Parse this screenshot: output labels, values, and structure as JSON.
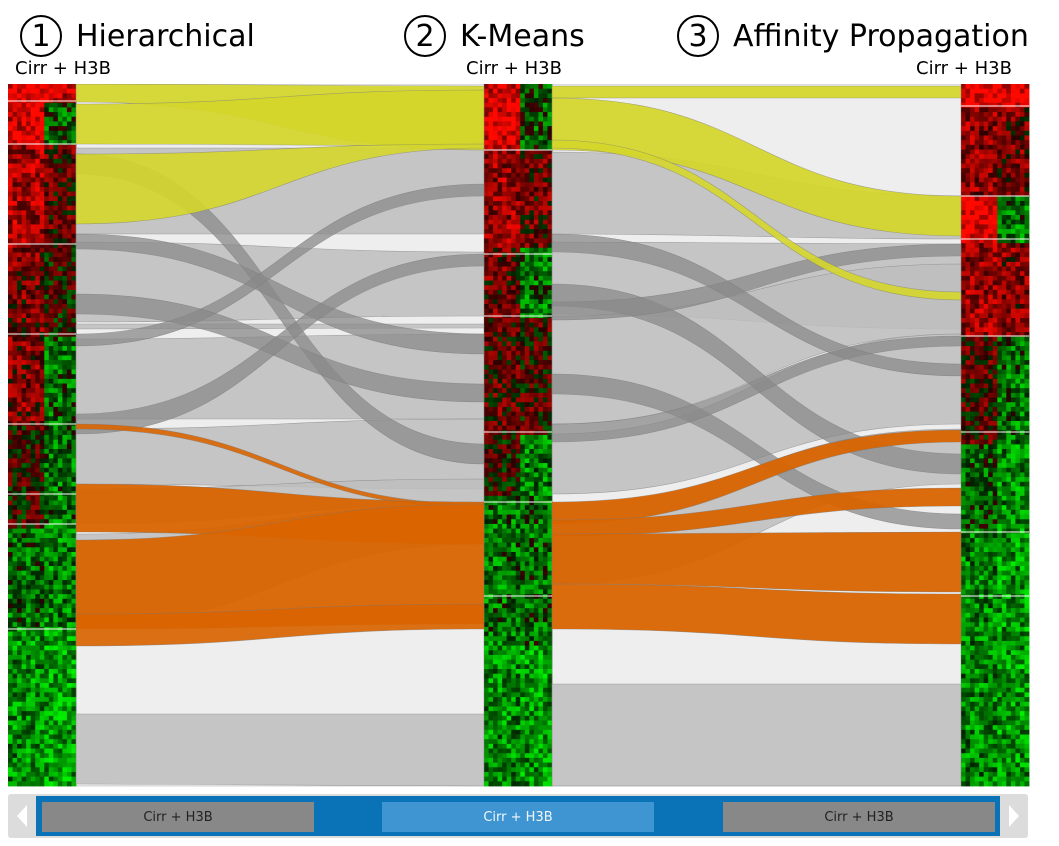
{
  "columns": [
    {
      "number": "1",
      "title": "Hierarchical",
      "label": "Cirr + H3B"
    },
    {
      "number": "2",
      "title": "K-Means",
      "label": "Cirr + H3B"
    },
    {
      "number": "3",
      "title": "Affinity Propagation",
      "label": "Cirr + H3B"
    }
  ],
  "navigation": {
    "items": [
      {
        "label": "Cirr + H3B",
        "active": false
      },
      {
        "label": "Cirr + H3B",
        "active": true
      },
      {
        "label": "Cirr + H3B",
        "active": false
      }
    ],
    "left_arrow_icon": "chevron-left-icon",
    "right_arrow_icon": "chevron-right-icon"
  },
  "colors": {
    "background": "#ffffff",
    "ribbon_gray": "#bdbdbd",
    "ribbon_yellow": "#d4d62a",
    "ribbon_orange": "#d96400",
    "heat_high": "#e00000",
    "heat_low": "#22dd22",
    "heat_mid": "#000000",
    "nav_track": "#0a73b8",
    "nav_active": "#3e95d1",
    "nav_inactive": "#888888"
  }
}
